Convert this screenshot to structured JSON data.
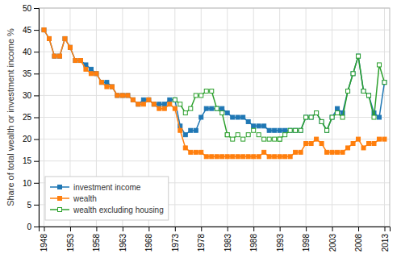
{
  "chart_data": {
    "type": "line",
    "y_label": "Share of total wealth or investment income %",
    "x": [
      1948,
      1949,
      1950,
      1951,
      1952,
      1953,
      1954,
      1955,
      1956,
      1957,
      1958,
      1959,
      1960,
      1961,
      1962,
      1963,
      1964,
      1965,
      1966,
      1967,
      1968,
      1969,
      1970,
      1971,
      1972,
      1973,
      1974,
      1975,
      1976,
      1977,
      1978,
      1979,
      1980,
      1981,
      1982,
      1983,
      1984,
      1985,
      1986,
      1987,
      1988,
      1989,
      1990,
      1991,
      1992,
      1993,
      1994,
      1995,
      1996,
      1997,
      1998,
      1999,
      2000,
      2001,
      2002,
      2003,
      2004,
      2005,
      2006,
      2007,
      2008,
      2009,
      2010,
      2011,
      2012,
      2013
    ],
    "xlim": [
      1947,
      2014
    ],
    "xticks": [
      1948,
      1953,
      1958,
      1963,
      1968,
      1973,
      1978,
      1983,
      1988,
      1993,
      1998,
      2003,
      2008,
      2013
    ],
    "ylim": [
      0,
      50
    ],
    "yticks": [
      0,
      5,
      10,
      15,
      20,
      25,
      30,
      35,
      40,
      45,
      50
    ],
    "grid": true,
    "legend": "lower left",
    "series": [
      {
        "name": "investment income",
        "marker": "square",
        "line_style": "solid",
        "values": [
          45,
          43,
          39,
          39,
          43,
          41,
          38,
          38,
          37,
          36,
          35,
          33,
          33,
          32,
          30,
          30,
          30,
          29,
          28,
          29,
          29,
          28,
          28,
          28,
          29,
          29,
          23,
          21,
          22,
          22,
          25,
          27,
          27,
          27,
          27,
          26,
          25,
          25,
          25,
          24,
          23,
          23,
          23,
          22,
          22,
          22,
          22,
          22,
          22,
          22,
          25,
          25,
          26,
          24,
          22,
          25,
          27,
          26,
          31,
          35,
          39,
          31,
          30,
          26,
          25,
          33
        ]
      },
      {
        "name": "wealth",
        "marker": "square",
        "line_style": "solid",
        "values": [
          45,
          43,
          39,
          39,
          43,
          41,
          38,
          38,
          36,
          35,
          35,
          33,
          32,
          32,
          30,
          30,
          30,
          29,
          28,
          28,
          29,
          28,
          27,
          27,
          28,
          27,
          22,
          18,
          17,
          17,
          17,
          16,
          16,
          16,
          16,
          16,
          16,
          16,
          16,
          16,
          16,
          16,
          17,
          16,
          16,
          16,
          16,
          16,
          17,
          17,
          19,
          19,
          20,
          19,
          17,
          17,
          17,
          17,
          18,
          19,
          20,
          18,
          19,
          19,
          20,
          20
        ]
      },
      {
        "name": "wealth excluding housing",
        "marker": "open-square",
        "line_style": "solid",
        "values": [
          null,
          null,
          null,
          null,
          null,
          null,
          null,
          null,
          null,
          null,
          null,
          null,
          null,
          null,
          null,
          null,
          null,
          null,
          null,
          null,
          null,
          null,
          null,
          null,
          null,
          29,
          28,
          26,
          27,
          30,
          30,
          31,
          31,
          27,
          26,
          21,
          null,
          null,
          null,
          null,
          null,
          null,
          null,
          null,
          null,
          20,
          21,
          22,
          22,
          22,
          25,
          25,
          26,
          24,
          22,
          25,
          26,
          25,
          31,
          35,
          39,
          31,
          30,
          25,
          37,
          33
        ]
      },
      {
        "name": "wealth excluding housing",
        "marker": "open-square",
        "line_style": "dashed",
        "values": [
          null,
          null,
          null,
          null,
          null,
          null,
          null,
          null,
          null,
          null,
          null,
          null,
          null,
          null,
          null,
          null,
          null,
          null,
          null,
          null,
          null,
          null,
          null,
          null,
          null,
          null,
          null,
          null,
          null,
          null,
          null,
          null,
          null,
          null,
          null,
          21,
          20,
          21,
          20,
          21,
          22,
          21,
          20,
          20,
          20,
          20,
          null,
          null,
          null,
          null,
          null,
          null,
          null,
          null,
          null,
          null,
          null,
          null,
          null,
          null,
          null,
          null,
          null,
          null,
          null,
          null
        ]
      }
    ]
  }
}
